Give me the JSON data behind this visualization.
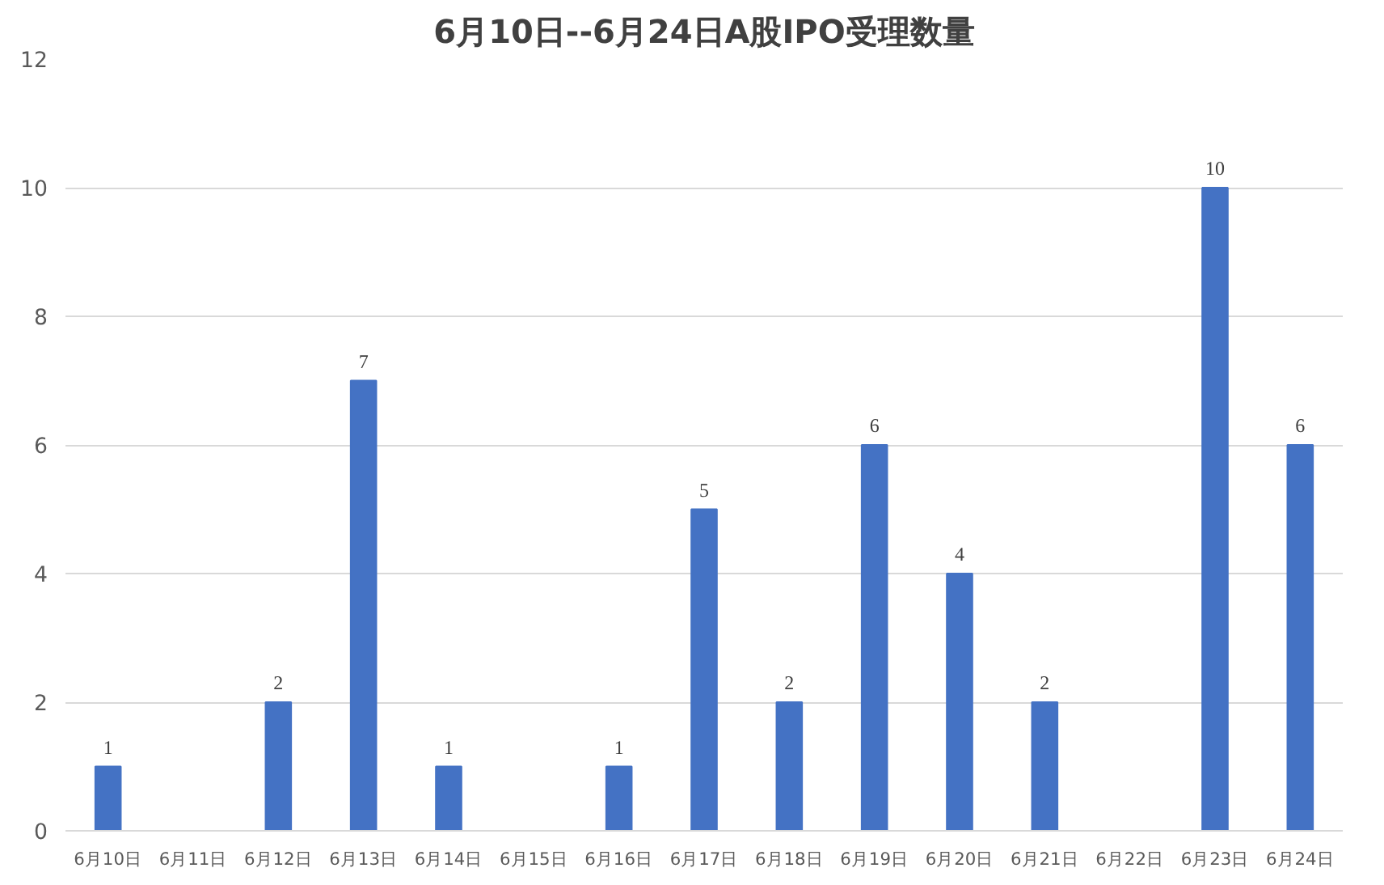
{
  "chart_data": {
    "type": "bar",
    "title": "6月10日--6月24日A股IPO受理数量",
    "categories": [
      "6月10日",
      "6月11日",
      "6月12日",
      "6月13日",
      "6月14日",
      "6月15日",
      "6月16日",
      "6月17日",
      "6月18日",
      "6月19日",
      "6月20日",
      "6月21日",
      "6月22日",
      "6月23日",
      "6月24日"
    ],
    "values": [
      1,
      0,
      2,
      7,
      1,
      0,
      1,
      5,
      2,
      6,
      4,
      2,
      0,
      10,
      6
    ],
    "value_labels": [
      "1",
      null,
      "2",
      "7",
      "1",
      null,
      "1",
      "5",
      "2",
      "6",
      "4",
      "2",
      null,
      "10",
      "6"
    ],
    "color": "#4472c4",
    "ylim": [
      0,
      12
    ],
    "yticks": [
      0,
      2,
      4,
      6,
      8,
      10,
      12
    ],
    "grid": "y"
  }
}
